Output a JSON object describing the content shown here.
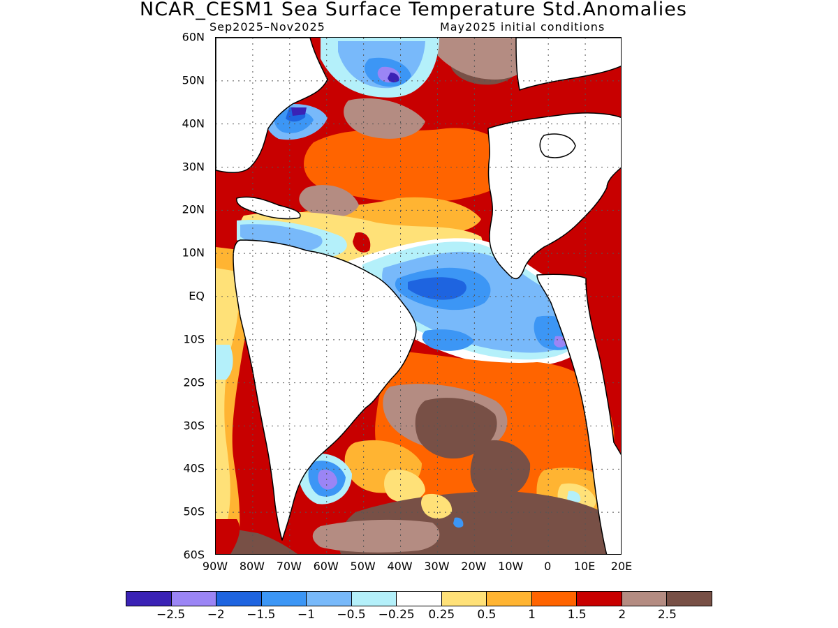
{
  "title": "NCAR_CESM1 Sea Surface Temperature Std.Anomalies",
  "subtitle_left": "Sep2025–Nov2025",
  "subtitle_right": "May2025 initial conditions",
  "map": {
    "lon_range": [
      -90,
      20
    ],
    "lat_range": [
      -60,
      60
    ],
    "gridlines": "dotted",
    "land_color": "#ffffff",
    "lat_labels": [
      "60N",
      "50N",
      "40N",
      "30N",
      "20N",
      "10N",
      "EQ",
      "10S",
      "20S",
      "30S",
      "40S",
      "50S",
      "60S"
    ],
    "lon_labels": [
      "90W",
      "80W",
      "70W",
      "60W",
      "50W",
      "40W",
      "30W",
      "20W",
      "10W",
      "0",
      "10E",
      "20E"
    ]
  },
  "colorbar": {
    "colors": [
      "#3a22b5",
      "#9b85f5",
      "#1e64e0",
      "#3c96f5",
      "#78b9fa",
      "#b4f0fa",
      "#ffffff",
      "#ffe178",
      "#ffb432",
      "#ff6400",
      "#c80000",
      "#b48c82",
      "#785046"
    ],
    "labels": [
      "−2.5",
      "−2",
      "−1.5",
      "−1",
      "−0.5",
      "−0.25",
      "0.25",
      "0.5",
      "1",
      "1.5",
      "2",
      "2.5"
    ]
  }
}
